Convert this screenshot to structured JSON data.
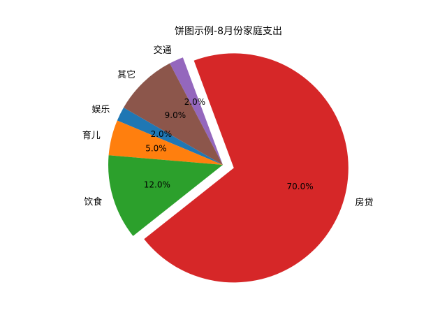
{
  "chart_data": {
    "type": "pie",
    "title": "饼图示例-8月份家庭支出",
    "labels": [
      "娱乐",
      "育儿",
      "饮食",
      "房贷",
      "交通",
      "其它"
    ],
    "values": [
      2,
      5,
      12,
      70,
      2,
      9
    ],
    "pct_labels": [
      "2.0%",
      "5.0%",
      "12.0%",
      "70.0%",
      "2.0%",
      "9.0%"
    ],
    "colors": [
      "#1f77b4",
      "#ff7f0e",
      "#2ca02c",
      "#d62728",
      "#9467bd",
      "#8c564b"
    ],
    "explode": [
      0,
      0,
      0,
      0.1,
      0,
      0
    ],
    "startangle": 150,
    "counterclock": true,
    "legend": "none"
  }
}
